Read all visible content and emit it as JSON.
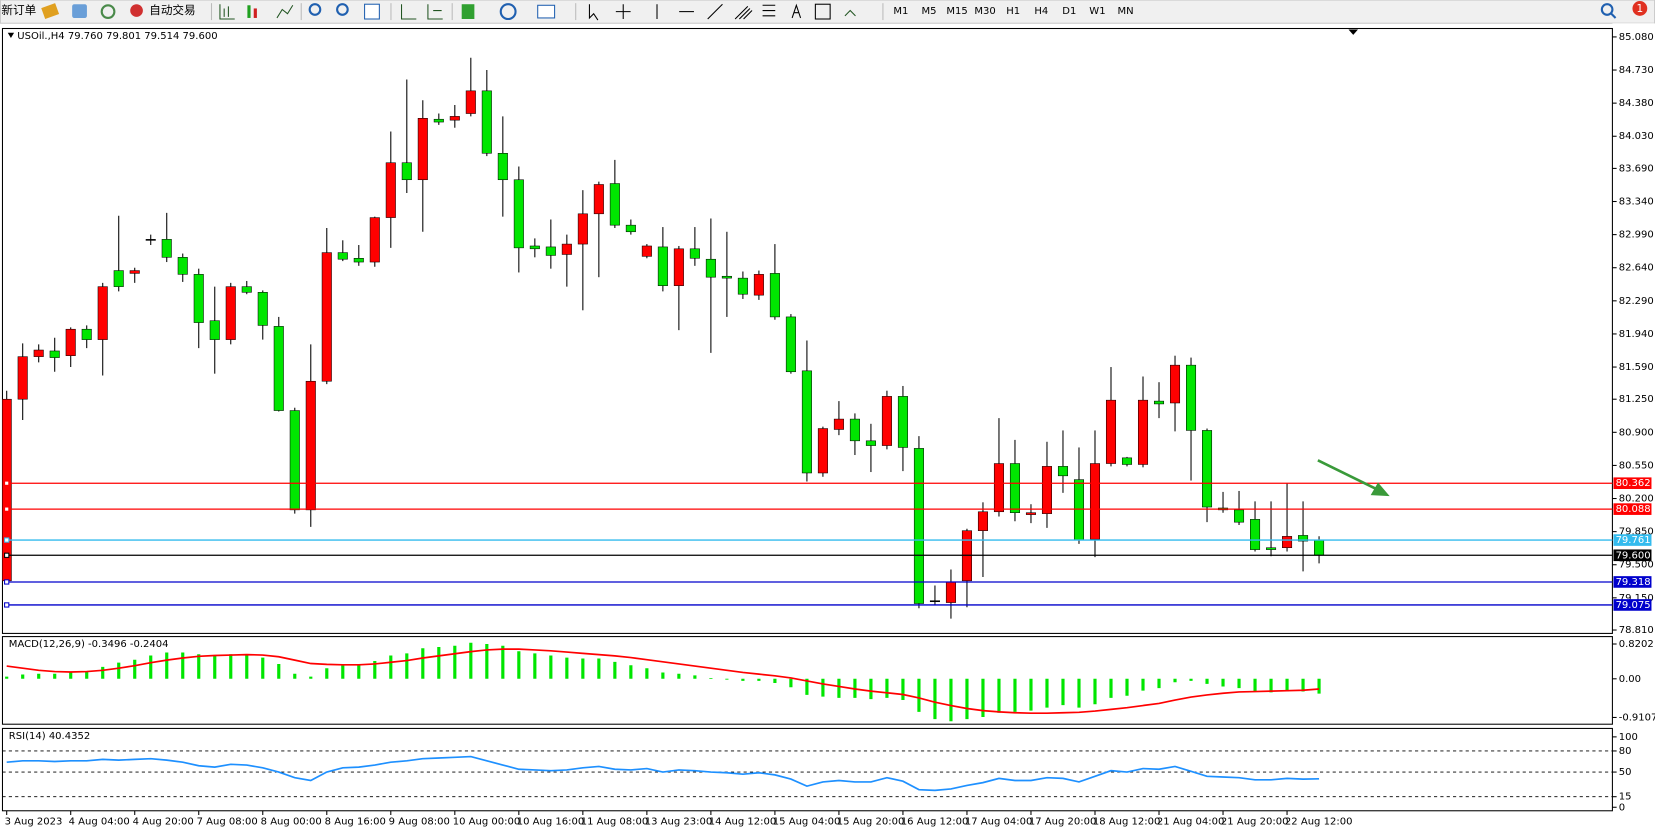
{
  "toolbar": {
    "new_order": "新订单",
    "auto_trading": "自动交易",
    "timeframes": [
      "M1",
      "M5",
      "M15",
      "M30",
      "H1",
      "H4",
      "D1",
      "W1",
      "MN"
    ],
    "badge": "1"
  },
  "chart_data": [
    {
      "type": "candlestick",
      "title": "USOil.,H4 79.760 79.801 79.514 79.600",
      "up_color": "#ff0000",
      "down_color": "#00e600",
      "grid": false,
      "categories": [
        "3 Aug 2023",
        null,
        null,
        null,
        "4 Aug 04:00",
        null,
        null,
        null,
        "4 Aug 20:00",
        null,
        null,
        null,
        "7 Aug 08:00",
        null,
        null,
        null,
        "8 Aug 00:00",
        null,
        null,
        null,
        "8 Aug 16:00",
        null,
        null,
        null,
        "9 Aug 08:00",
        null,
        null,
        null,
        "10 Aug 00:00",
        null,
        null,
        null,
        "10 Aug 16:00",
        null,
        null,
        null,
        "11 Aug 08:00",
        null,
        null,
        null,
        "13 Aug 23:00",
        null,
        null,
        null,
        "14 Aug 12:00",
        null,
        null,
        null,
        "15 Aug 04:00",
        null,
        null,
        null,
        "15 Aug 20:00",
        null,
        null,
        null,
        "16 Aug 12:00",
        null,
        null,
        null,
        "17 Aug 04:00",
        null,
        null,
        null,
        "17 Aug 20:00",
        null,
        null,
        null,
        "18 Aug 12:00",
        null,
        null,
        null,
        "21 Aug 04:00",
        null,
        null,
        null,
        "21 Aug 20:00",
        null,
        null,
        null,
        "22 Aug 12:00",
        null,
        null
      ],
      "open": [
        79.33,
        81.25,
        81.7,
        81.76,
        81.71,
        81.99,
        81.88,
        82.61,
        82.58,
        82.94,
        82.94,
        82.75,
        82.57,
        82.08,
        81.88,
        82.44,
        82.38,
        82.02,
        81.13,
        80.08,
        81.44,
        82.8,
        82.74,
        82.7,
        83.17,
        83.75,
        83.57,
        84.21,
        84.2,
        84.27,
        84.51,
        83.85,
        83.57,
        82.87,
        82.86,
        82.78,
        82.89,
        83.21,
        83.53,
        83.09,
        82.76,
        82.86,
        82.45,
        82.84,
        82.73,
        82.55,
        82.53,
        82.35,
        82.58,
        82.12,
        81.55,
        80.47,
        80.93,
        81.04,
        80.81,
        80.76,
        81.28,
        80.73,
        79.12,
        79.1,
        79.33,
        79.86,
        80.06,
        80.57,
        80.03,
        80.04,
        80.54,
        80.4,
        79.77,
        80.57,
        80.63,
        80.56,
        81.23,
        81.21,
        81.61,
        80.92,
        80.1,
        80.08,
        79.98,
        79.68,
        79.68,
        79.81,
        79.76
      ],
      "high": [
        81.34,
        81.84,
        81.83,
        81.9,
        82.01,
        82.03,
        82.48,
        83.19,
        82.64,
        82.99,
        83.22,
        82.79,
        82.63,
        82.44,
        82.48,
        82.5,
        82.4,
        82.12,
        81.16,
        81.83,
        83.06,
        82.93,
        82.88,
        83.18,
        84.08,
        84.63,
        84.41,
        84.27,
        84.36,
        84.86,
        84.73,
        84.24,
        83.71,
        82.95,
        83.15,
        82.99,
        83.46,
        83.55,
        83.78,
        83.15,
        82.89,
        83.07,
        82.87,
        83.07,
        83.16,
        83.02,
        82.6,
        82.61,
        82.89,
        82.15,
        81.87,
        80.96,
        81.23,
        81.1,
        80.99,
        81.34,
        81.39,
        80.86,
        79.28,
        79.45,
        79.88,
        80.16,
        81.05,
        80.82,
        80.14,
        80.8,
        80.92,
        80.74,
        80.92,
        81.59,
        80.64,
        81.49,
        81.43,
        81.71,
        81.69,
        80.94,
        80.27,
        80.28,
        80.17,
        80.17,
        80.36,
        80.17,
        79.801
      ],
      "low": [
        79.31,
        81.03,
        81.64,
        81.54,
        81.59,
        81.79,
        81.5,
        82.39,
        82.48,
        82.88,
        82.7,
        82.49,
        81.79,
        81.52,
        81.83,
        82.36,
        81.88,
        81.12,
        80.04,
        79.9,
        81.41,
        82.71,
        82.66,
        82.65,
        82.85,
        83.43,
        83.02,
        84.15,
        84.12,
        84.24,
        83.82,
        83.18,
        82.59,
        82.75,
        82.63,
        82.44,
        82.19,
        82.54,
        83.06,
        82.99,
        82.74,
        82.39,
        81.98,
        82.66,
        81.74,
        82.12,
        82.31,
        82.3,
        82.09,
        81.52,
        80.38,
        80.43,
        80.87,
        80.66,
        80.48,
        80.72,
        80.49,
        79.04,
        79.07,
        78.93,
        79.05,
        79.37,
        80.01,
        79.96,
        79.94,
        79.89,
        80.26,
        79.72,
        79.58,
        80.54,
        80.54,
        80.53,
        81.05,
        80.91,
        80.39,
        79.95,
        80.05,
        79.92,
        79.64,
        79.59,
        79.64,
        79.43,
        79.514
      ],
      "close": [
        81.25,
        81.7,
        81.77,
        81.69,
        81.99,
        81.88,
        82.44,
        82.44,
        82.61,
        82.94,
        82.75,
        82.57,
        82.06,
        81.88,
        82.44,
        82.38,
        82.03,
        81.13,
        80.08,
        81.44,
        82.8,
        82.73,
        82.7,
        83.17,
        83.75,
        83.57,
        84.22,
        84.18,
        84.24,
        84.51,
        83.85,
        83.57,
        82.85,
        82.84,
        82.77,
        82.89,
        83.21,
        83.52,
        83.09,
        83.02,
        82.87,
        82.45,
        82.84,
        82.74,
        82.54,
        82.53,
        82.36,
        82.57,
        82.12,
        81.54,
        80.47,
        80.94,
        81.04,
        80.81,
        80.76,
        81.28,
        80.74,
        79.09,
        79.12,
        79.32,
        79.86,
        80.06,
        80.57,
        80.05,
        80.05,
        80.54,
        80.44,
        79.76,
        80.57,
        81.24,
        80.56,
        81.24,
        81.2,
        81.61,
        80.92,
        80.11,
        80.08,
        79.95,
        79.66,
        79.66,
        79.8,
        79.75,
        79.6
      ],
      "ylim": [
        78.774,
        85.169
      ],
      "yticks": [
        {
          "value": 85.08,
          "label": "85.080"
        },
        {
          "value": 84.73,
          "label": "84.730"
        },
        {
          "value": 84.38,
          "label": "84.380"
        },
        {
          "value": 84.03,
          "label": "84.030"
        },
        {
          "value": 83.69,
          "label": "83.690"
        },
        {
          "value": 83.34,
          "label": "83.340"
        },
        {
          "value": 82.99,
          "label": "82.990"
        },
        {
          "value": 82.64,
          "label": "82.640"
        },
        {
          "value": 82.29,
          "label": "82.290"
        },
        {
          "value": 81.94,
          "label": "81.940"
        },
        {
          "value": 81.59,
          "label": "81.590"
        },
        {
          "value": 81.25,
          "label": "81.250"
        },
        {
          "value": 80.9,
          "label": "80.900"
        },
        {
          "value": 80.55,
          "label": "80.550"
        },
        {
          "value": 80.2,
          "label": "80.200"
        },
        {
          "value": 79.85,
          "label": "79.850"
        },
        {
          "value": 79.5,
          "label": "79.500"
        },
        {
          "value": 79.15,
          "label": "79.150"
        },
        {
          "value": 78.81,
          "label": "78.810"
        }
      ],
      "levels": [
        {
          "value": 80.362,
          "color": "#ff0000"
        },
        {
          "value": 80.088,
          "color": "#ff0000"
        },
        {
          "value": 79.761,
          "color": "#33bbee"
        },
        {
          "value": 79.6,
          "label": "79.600",
          "color": "#000000"
        },
        {
          "value": 79.318,
          "color": "#0000cc"
        },
        {
          "value": 79.075,
          "color": "#0000cc"
        }
      ]
    },
    {
      "type": "indicator",
      "title": "MACD(12,26,9) -0.3496 -0.2404",
      "series": [
        {
          "type": "bar",
          "color": "#00e600",
          "values": [
            0.05,
            0.1,
            0.12,
            0.12,
            0.15,
            0.18,
            0.28,
            0.38,
            0.45,
            0.55,
            0.62,
            0.62,
            0.58,
            0.55,
            0.58,
            0.56,
            0.5,
            0.35,
            0.12,
            0.05,
            0.25,
            0.32,
            0.35,
            0.42,
            0.55,
            0.6,
            0.72,
            0.75,
            0.78,
            0.85,
            0.82,
            0.78,
            0.65,
            0.6,
            0.55,
            0.5,
            0.48,
            0.48,
            0.4,
            0.32,
            0.25,
            0.15,
            0.12,
            0.08,
            0.02,
            -0.02,
            -0.05,
            -0.05,
            -0.1,
            -0.2,
            -0.38,
            -0.42,
            -0.45,
            -0.45,
            -0.48,
            -0.45,
            -0.5,
            -0.78,
            -0.95,
            -1.0,
            -0.95,
            -0.9,
            -0.8,
            -0.78,
            -0.75,
            -0.68,
            -0.62,
            -0.68,
            -0.6,
            -0.45,
            -0.4,
            -0.28,
            -0.22,
            -0.08,
            -0.05,
            -0.12,
            -0.18,
            -0.22,
            -0.3,
            -0.32,
            -0.3,
            -0.3,
            -0.3496
          ]
        },
        {
          "type": "line",
          "color": "#ff0000",
          "values": [
            0.3,
            0.25,
            0.2,
            0.17,
            0.16,
            0.17,
            0.2,
            0.25,
            0.31,
            0.38,
            0.44,
            0.49,
            0.53,
            0.55,
            0.56,
            0.57,
            0.56,
            0.52,
            0.44,
            0.36,
            0.34,
            0.33,
            0.33,
            0.35,
            0.39,
            0.43,
            0.49,
            0.54,
            0.59,
            0.64,
            0.68,
            0.7,
            0.7,
            0.68,
            0.66,
            0.63,
            0.6,
            0.57,
            0.54,
            0.5,
            0.45,
            0.4,
            0.35,
            0.3,
            0.25,
            0.2,
            0.15,
            0.11,
            0.07,
            0.02,
            -0.05,
            -0.12,
            -0.18,
            -0.24,
            -0.29,
            -0.33,
            -0.37,
            -0.45,
            -0.55,
            -0.63,
            -0.7,
            -0.75,
            -0.78,
            -0.8,
            -0.81,
            -0.81,
            -0.8,
            -0.79,
            -0.76,
            -0.72,
            -0.68,
            -0.63,
            -0.58,
            -0.5,
            -0.43,
            -0.38,
            -0.34,
            -0.31,
            -0.3,
            -0.29,
            -0.28,
            -0.27,
            -0.2404
          ]
        }
      ],
      "ylim": [
        -1.07,
        0.995
      ],
      "yticks": [
        0.8202,
        {
          "value": 0,
          "label": "0.00"
        },
        -0.9107
      ]
    },
    {
      "type": "indicator",
      "title": "RSI(14) 40.4352",
      "series": [
        {
          "type": "line",
          "color": "#1e90ff",
          "values": [
            64,
            66,
            66,
            65,
            66,
            66,
            68,
            67,
            68,
            69,
            67,
            64,
            59,
            57,
            61,
            60,
            56,
            50,
            42,
            38,
            50,
            56,
            57,
            60,
            64,
            66,
            69,
            70,
            71,
            72,
            66,
            60,
            54,
            53,
            52,
            53,
            56,
            58,
            54,
            53,
            55,
            50,
            53,
            52,
            50,
            49,
            47,
            49,
            46,
            40,
            30,
            36,
            38,
            36,
            36,
            42,
            37,
            25,
            24,
            26,
            31,
            35,
            41,
            38,
            38,
            42,
            41,
            36,
            44,
            52,
            50,
            55,
            54,
            58,
            51,
            44,
            43,
            42,
            39,
            39,
            41,
            40,
            40.4352
          ]
        }
      ],
      "ylim": [
        -5,
        112
      ],
      "yticks": [
        100,
        80,
        50,
        15,
        0
      ],
      "levels": [
        80,
        50,
        15
      ]
    }
  ]
}
